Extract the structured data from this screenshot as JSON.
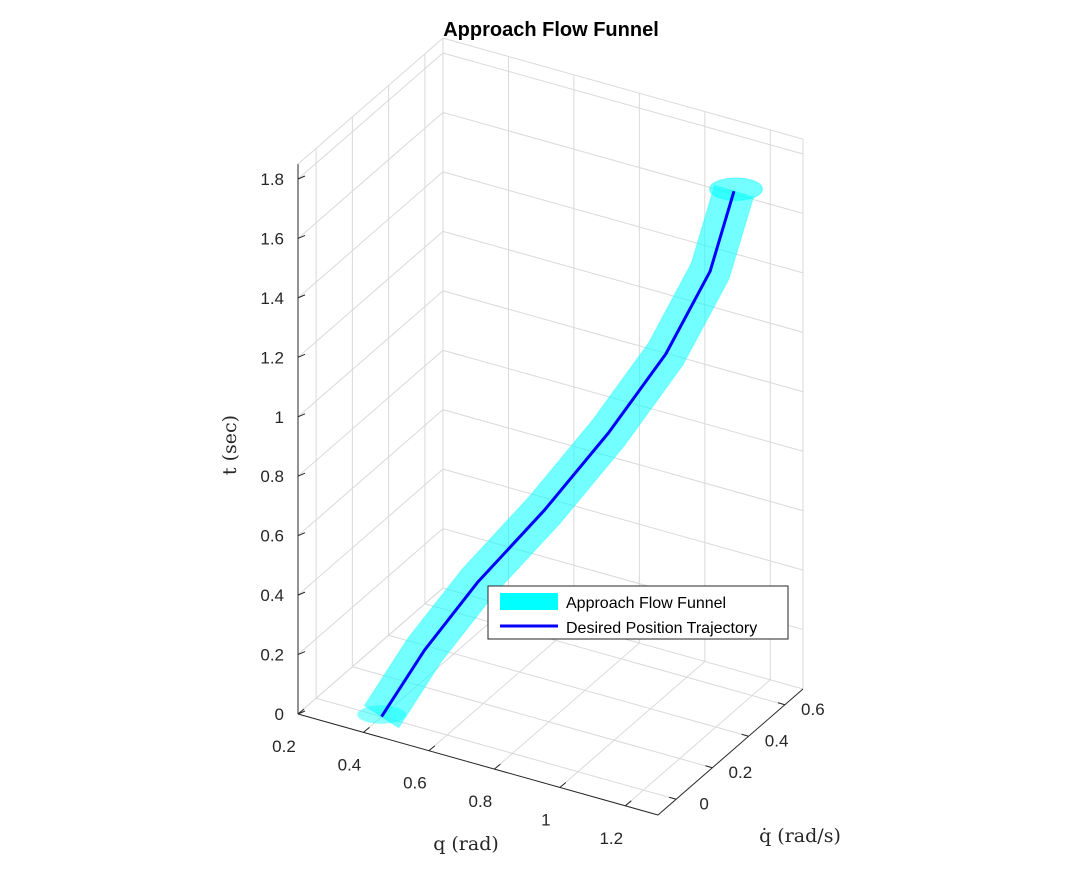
{
  "chart_data": {
    "type": "line",
    "view": "3d",
    "title": "Approach Flow Funnel",
    "xlabel": "q (rad)",
    "ylabel": "q̇ (rad/s)",
    "zlabel": "t (sec)",
    "xlim": [
      0.2,
      1.3
    ],
    "ylim": [
      -0.1,
      0.7
    ],
    "zlim": [
      0,
      1.85
    ],
    "xticks": [
      "0.2",
      "0.4",
      "0.6",
      "0.8",
      "1",
      "1.2"
    ],
    "yticks": [
      "0",
      "0.2",
      "0.4",
      "0.6"
    ],
    "zticks": [
      "0",
      "0.2",
      "0.4",
      "0.6",
      "0.8",
      "1",
      "1.2",
      "1.4",
      "1.6",
      "1.8"
    ],
    "grid": true,
    "legend_position": "inside-lower-right",
    "series": [
      {
        "name": "Approach Flow Funnel",
        "kind": "tube",
        "color": "#00FFFF",
        "x": [
          0.4,
          0.52,
          0.66,
          0.82,
          0.96,
          1.08,
          1.16,
          1.2
        ],
        "y": [
          0.0,
          0.02,
          0.06,
          0.14,
          0.24,
          0.34,
          0.44,
          0.5
        ],
        "t": [
          0.0,
          0.25,
          0.5,
          0.75,
          1.0,
          1.25,
          1.5,
          1.75
        ],
        "radius_q": 0.06
      },
      {
        "name": "Desired Position Trajectory",
        "kind": "line",
        "color": "#0000FF",
        "x": [
          0.4,
          0.52,
          0.66,
          0.82,
          0.96,
          1.08,
          1.16,
          1.2
        ],
        "y": [
          0.0,
          0.02,
          0.06,
          0.14,
          0.24,
          0.34,
          0.44,
          0.5
        ],
        "t": [
          0.0,
          0.25,
          0.5,
          0.75,
          1.0,
          1.25,
          1.5,
          1.75
        ]
      }
    ]
  }
}
